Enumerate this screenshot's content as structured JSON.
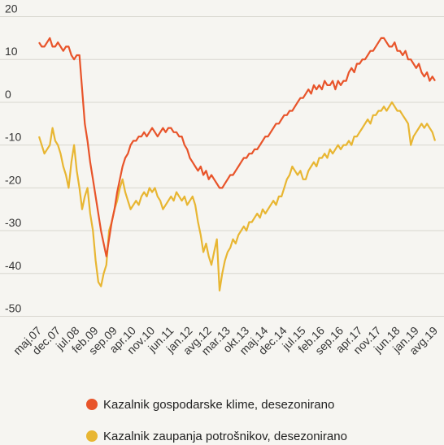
{
  "chart_data": {
    "type": "line",
    "categories": [
      "maj.07",
      null,
      null,
      null,
      null,
      null,
      null,
      "dec.07",
      null,
      null,
      null,
      null,
      null,
      null,
      "jul.08",
      null,
      null,
      null,
      null,
      null,
      null,
      "feb.09",
      null,
      null,
      null,
      null,
      null,
      null,
      "sep.09",
      null,
      null,
      null,
      null,
      null,
      null,
      "apr.10",
      null,
      null,
      null,
      null,
      null,
      null,
      "nov.10",
      null,
      null,
      null,
      null,
      null,
      null,
      "jun.11",
      null,
      null,
      null,
      null,
      null,
      null,
      "jan.12",
      null,
      null,
      null,
      null,
      null,
      null,
      "avg.12",
      null,
      null,
      null,
      null,
      null,
      null,
      "mar.13",
      null,
      null,
      null,
      null,
      null,
      null,
      "okt.13",
      null,
      null,
      null,
      null,
      null,
      null,
      "maj.14",
      null,
      null,
      null,
      null,
      null,
      null,
      "dec.14",
      null,
      null,
      null,
      null,
      null,
      null,
      "jul.15",
      null,
      null,
      null,
      null,
      null,
      null,
      "feb.16",
      null,
      null,
      null,
      null,
      null,
      null,
      "sep.16",
      null,
      null,
      null,
      null,
      null,
      null,
      "apr.17",
      null,
      null,
      null,
      null,
      null,
      null,
      "nov.17",
      null,
      null,
      null,
      null,
      null,
      null,
      "jun.18",
      null,
      null,
      null,
      null,
      null,
      null,
      "jan.19",
      null,
      null,
      null,
      null,
      null,
      null,
      "avg.19"
    ],
    "series": [
      {
        "name": "Kazalnik gospodarske klime, desezonirano",
        "color": "#e8542a",
        "values": [
          14,
          13,
          13,
          14,
          15,
          13,
          13,
          14,
          13,
          12,
          13,
          13,
          11,
          10,
          11,
          11,
          3,
          -5,
          -9,
          -14,
          -18,
          -22,
          -26,
          -30,
          -33,
          -36,
          -32,
          -28,
          -25,
          -21,
          -18,
          -15,
          -13,
          -12,
          -10,
          -9,
          -9,
          -8,
          -8,
          -7,
          -8,
          -7,
          -6,
          -7,
          -8,
          -7,
          -6,
          -7,
          -6,
          -6,
          -7,
          -7,
          -8,
          -8,
          -10,
          -11,
          -13,
          -14,
          -15,
          -16,
          -15,
          -17,
          -16,
          -18,
          -17,
          -18,
          -19,
          -20,
          -20,
          -19,
          -18,
          -17,
          -17,
          -16,
          -15,
          -14,
          -13,
          -13,
          -12,
          -12,
          -11,
          -11,
          -10,
          -9,
          -8,
          -8,
          -7,
          -6,
          -5,
          -5,
          -4,
          -3,
          -3,
          -2,
          -2,
          -1,
          0,
          1,
          1,
          2,
          3,
          2,
          4,
          3,
          4,
          3,
          5,
          4,
          4,
          5,
          3,
          5,
          4,
          5,
          5,
          7,
          8,
          7,
          9,
          9,
          10,
          10,
          11,
          12,
          12,
          13,
          14,
          15,
          15,
          14,
          13,
          13,
          14,
          12,
          12,
          11,
          12,
          10,
          10,
          9,
          8,
          9,
          7,
          6,
          7,
          5,
          6,
          5
        ]
      },
      {
        "name": "Kazalnik zaupanja potrošnikov, desezonirano",
        "color": "#e8b632",
        "values": [
          -8,
          -10,
          -12,
          -11,
          -10,
          -6,
          -9,
          -10,
          -12,
          -15,
          -17,
          -20,
          -14,
          -10,
          -16,
          -20,
          -25,
          -22,
          -20,
          -26,
          -30,
          -37,
          -42,
          -43,
          -40,
          -38,
          -30,
          -28,
          -25,
          -23,
          -20,
          -18,
          -21,
          -23,
          -25,
          -24,
          -23,
          -24,
          -22,
          -21,
          -22,
          -20,
          -21,
          -20,
          -22,
          -23,
          -25,
          -24,
          -23,
          -22,
          -23,
          -21,
          -22,
          -23,
          -22,
          -24,
          -23,
          -22,
          -24,
          -28,
          -31,
          -35,
          -33,
          -36,
          -38,
          -35,
          -32,
          -44,
          -40,
          -37,
          -35,
          -34,
          -32,
          -33,
          -31,
          -30,
          -29,
          -30,
          -28,
          -28,
          -27,
          -26,
          -27,
          -25,
          -26,
          -25,
          -24,
          -23,
          -24,
          -22,
          -22,
          -20,
          -18,
          -17,
          -15,
          -16,
          -17,
          -16,
          -18,
          -18,
          -16,
          -15,
          -14,
          -15,
          -13,
          -13,
          -12,
          -13,
          -11,
          -12,
          -11,
          -10,
          -11,
          -10,
          -10,
          -9,
          -10,
          -8,
          -8,
          -7,
          -6,
          -5,
          -4,
          -5,
          -3,
          -3,
          -2,
          -2,
          -1,
          -2,
          -1,
          0,
          -1,
          -2,
          -2,
          -3,
          -4,
          -5,
          -10,
          -8,
          -7,
          -6,
          -5,
          -6,
          -5,
          -6,
          -7,
          -9
        ]
      }
    ],
    "ylim": [
      -52,
      22
    ],
    "yticks": [
      20,
      10,
      0,
      -10,
      -20,
      -30,
      -40,
      -50
    ],
    "grid": true,
    "legend": "bottom"
  }
}
